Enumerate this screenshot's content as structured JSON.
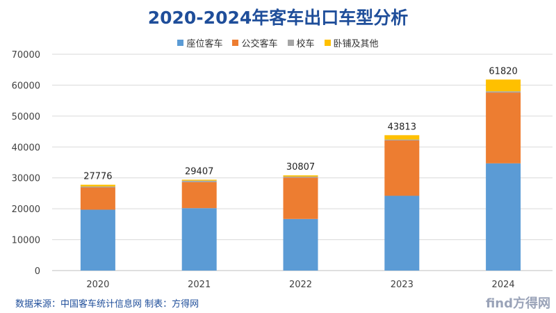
{
  "chart_data": {
    "type": "bar",
    "stacked": true,
    "title": "2020-2024年客车出口车型分析",
    "categories": [
      "2020",
      "2021",
      "2022",
      "2023",
      "2024"
    ],
    "series": [
      {
        "name": "座位客车",
        "color": "#5b9bd5",
        "values": [
          19700,
          20200,
          16700,
          24200,
          34700
        ]
      },
      {
        "name": "公交客车",
        "color": "#ed7d31",
        "values": [
          7200,
          8400,
          13400,
          17900,
          22900
        ]
      },
      {
        "name": "校车",
        "color": "#a5a5a5",
        "values": [
          300,
          500,
          300,
          300,
          400
        ]
      },
      {
        "name": "卧铺及其他",
        "color": "#ffc000",
        "values": [
          576,
          307,
          407,
          1413,
          3820
        ]
      }
    ],
    "totals": [
      "27776",
      "29407",
      "30807",
      "43813",
      "61820"
    ],
    "ylim": [
      0,
      70000
    ],
    "yticks": [
      "0",
      "10000",
      "20000",
      "30000",
      "40000",
      "50000",
      "60000",
      "70000"
    ],
    "grid": true,
    "legend": "top"
  },
  "footer": {
    "source": "数据来源：中国客车统计信息网  制表：方得网",
    "logo": "find方得网"
  }
}
